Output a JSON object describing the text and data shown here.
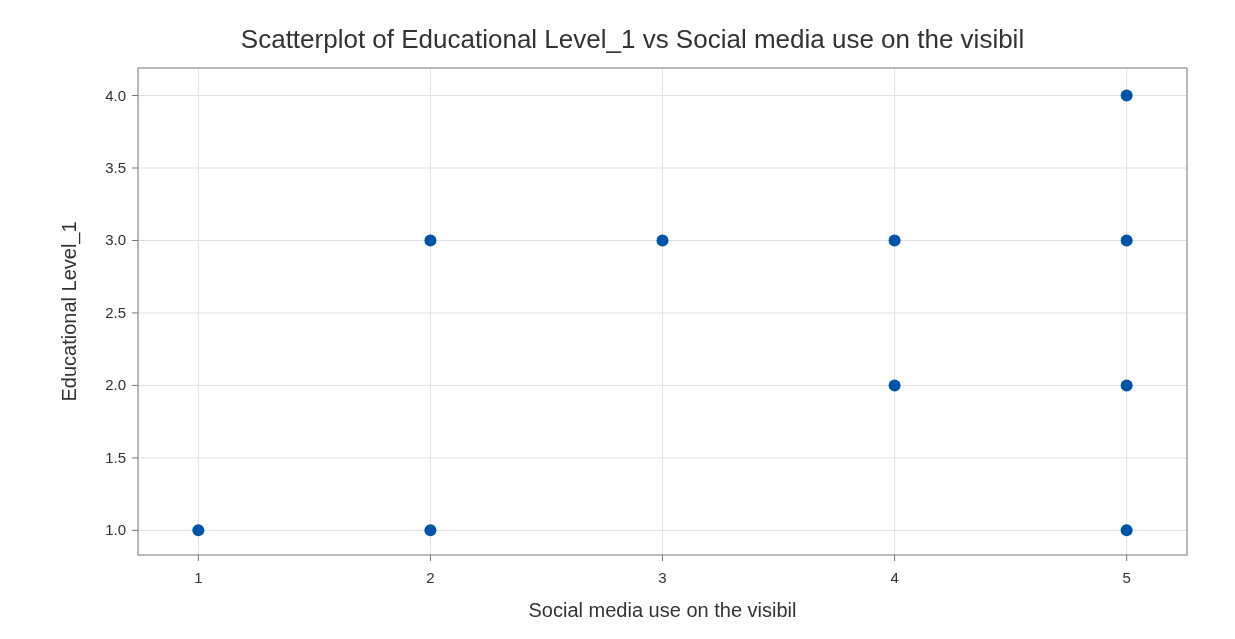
{
  "chart_data": {
    "type": "scatter",
    "title": "Scatterplot of Educational Level_1 vs Social media use on the visibil",
    "xlabel": "Social media use on the visibil",
    "ylabel": "Educational Level_1",
    "x": [
      1,
      2,
      2,
      3,
      4,
      4,
      5,
      5,
      5,
      5
    ],
    "series": [
      {
        "color": "#0054a6",
        "values": [
          1,
          3,
          1,
          3,
          3,
          2,
          4,
          3,
          2,
          1
        ]
      }
    ],
    "xlim": [
      0.74,
      5.26
    ],
    "xticks": [
      1,
      2,
      3,
      4,
      5
    ],
    "ylim": [
      0.83,
      4.19
    ],
    "yticks": [
      {
        "value": 1,
        "label": "1.0"
      },
      {
        "value": 1.5,
        "label": "1.5"
      },
      {
        "value": 2,
        "label": "2.0"
      },
      {
        "value": 2.5,
        "label": "2.5"
      },
      {
        "value": 3,
        "label": "3.0"
      },
      {
        "value": 3.5,
        "label": "3.5"
      },
      {
        "value": 4,
        "label": "4.0"
      }
    ],
    "grid": true,
    "marker": "circle"
  }
}
